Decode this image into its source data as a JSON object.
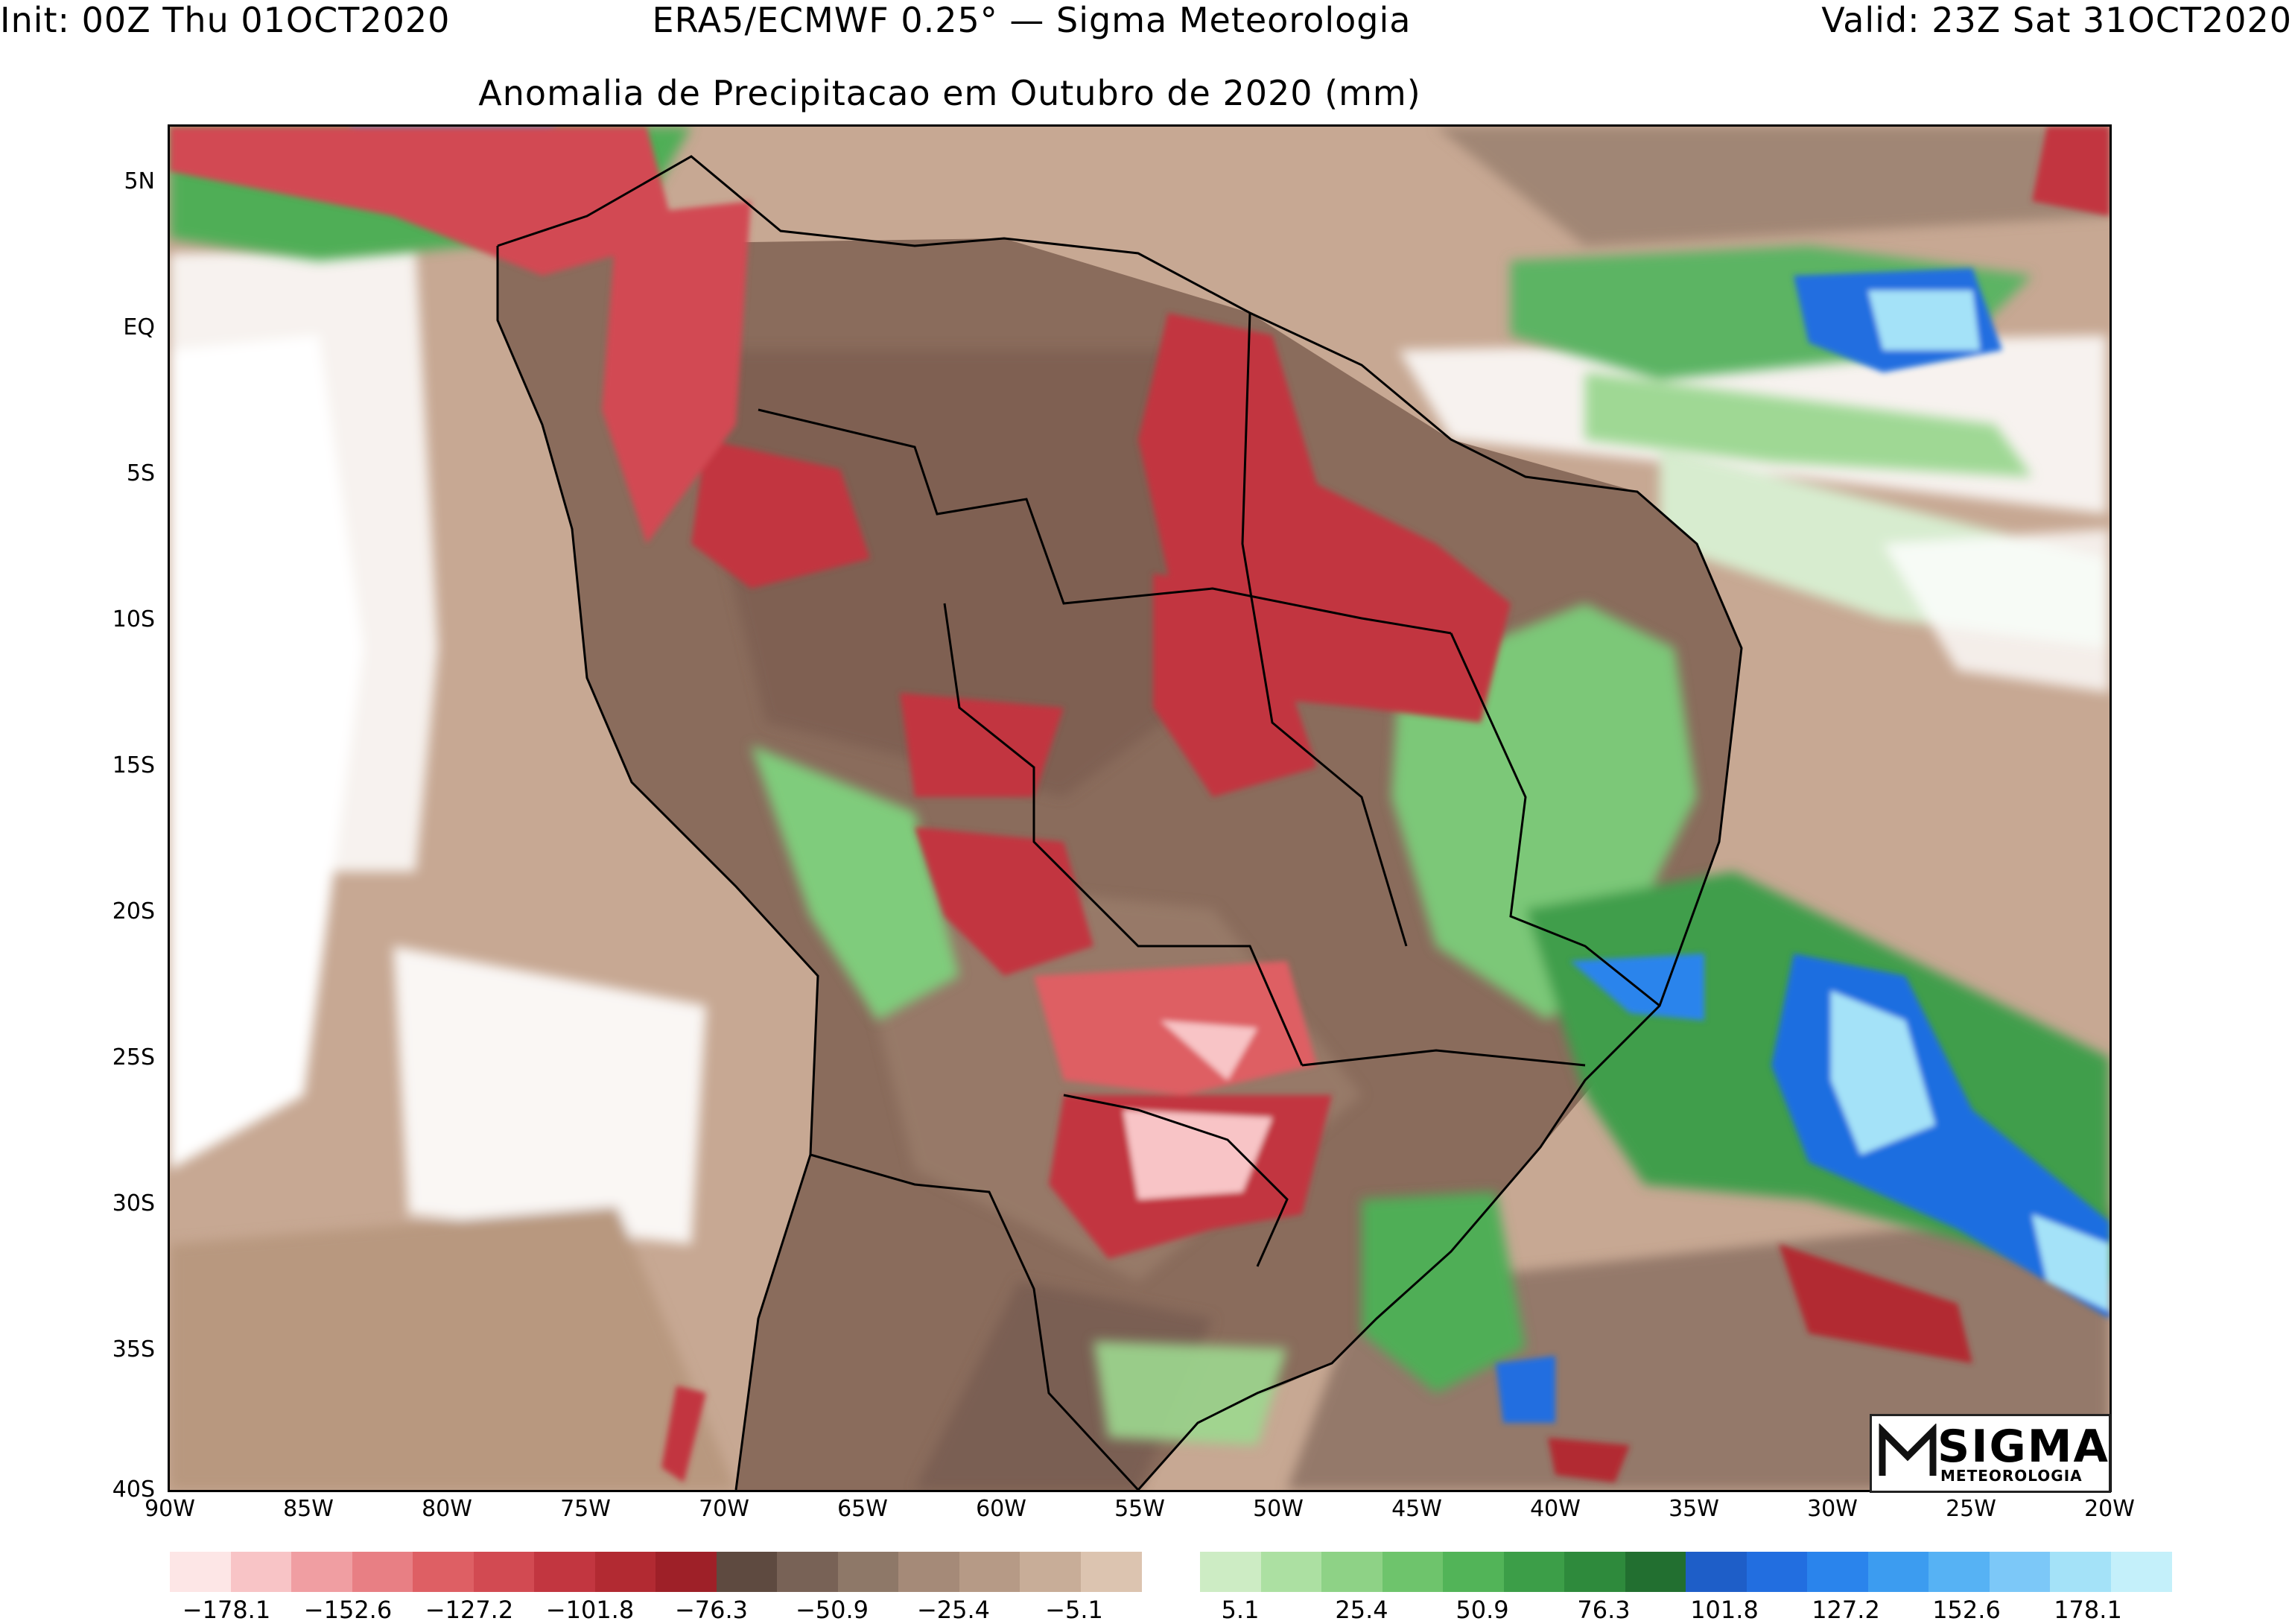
{
  "header": {
    "left": "Init: 00Z Thu 01OCT2020",
    "center": "ERA5/ECMWF 0.25° — Sigma Meteorologia",
    "right": "Valid: 23Z Sat 31OCT2020"
  },
  "title": "Anomalia de Precipitacao em Outubro de 2020 (mm)",
  "axes": {
    "y_labels": [
      "5N",
      "EQ",
      "5S",
      "10S",
      "15S",
      "20S",
      "25S",
      "30S",
      "35S",
      "40S"
    ],
    "x_labels": [
      "90W",
      "85W",
      "80W",
      "75W",
      "70W",
      "65W",
      "60W",
      "55W",
      "50W",
      "45W",
      "40W",
      "35W",
      "30W",
      "25W",
      "20W"
    ]
  },
  "colorbar": {
    "labels": [
      "−178.1",
      "−152.6",
      "−127.2",
      "−101.8",
      "−76.3",
      "−50.9",
      "−25.4",
      "−5.1",
      "5.1",
      "25.4",
      "50.9",
      "76.3",
      "101.8",
      "127.2",
      "152.6",
      "178.1"
    ],
    "negative_colors": [
      "#fde6e6",
      "#f8c4c6",
      "#f09ea2",
      "#e87f84",
      "#de5f64",
      "#d24a52",
      "#c23640",
      "#b22a32",
      "#9e2028",
      "#5e4a40",
      "#786256",
      "#8e7868",
      "#a58a78",
      "#b69a86",
      "#c8ad98",
      "#dcc4b0"
    ],
    "positive_colors": [
      "#cdecc4",
      "#ace0a2",
      "#8ed286",
      "#6ec46c",
      "#52b458",
      "#3c9e48",
      "#2e8a3c",
      "#226f30",
      "#1e5ec8",
      "#226ee0",
      "#2a84ec",
      "#3c9cf0",
      "#56b2f4",
      "#7cc8f8",
      "#a4e2f8",
      "#c4f0fa"
    ]
  },
  "logo": {
    "name": "SIGMA",
    "sub": "METEOROLOGIA"
  }
}
